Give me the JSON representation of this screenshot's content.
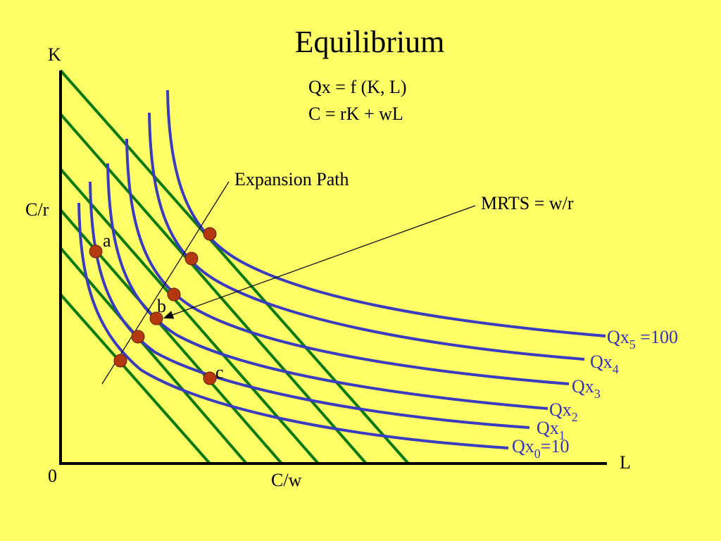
{
  "title": "Equilibrium",
  "equations": [
    "Qx = f (K, L)",
    "C = rK + wL"
  ],
  "axes": {
    "y_label": "K",
    "x_label": "L",
    "origin": "0",
    "y_intercept": "C/r",
    "x_intercept": "C/w"
  },
  "annotations": {
    "expansion_path": "Expansion Path",
    "mrts": "MRTS = w/r"
  },
  "points": [
    "a",
    "b",
    "c"
  ],
  "curves": [
    {
      "base": "Qx",
      "sub": "5",
      "rest": " =100"
    },
    {
      "base": "Qx",
      "sub": "4",
      "rest": ""
    },
    {
      "base": "Qx",
      "sub": "3",
      "rest": ""
    },
    {
      "base": "Qx",
      "sub": "2",
      "rest": ""
    },
    {
      "base": "Qx",
      "sub": "1",
      "rest": ""
    },
    {
      "base": "Qx",
      "sub": "0",
      "rest": "=10"
    }
  ]
}
